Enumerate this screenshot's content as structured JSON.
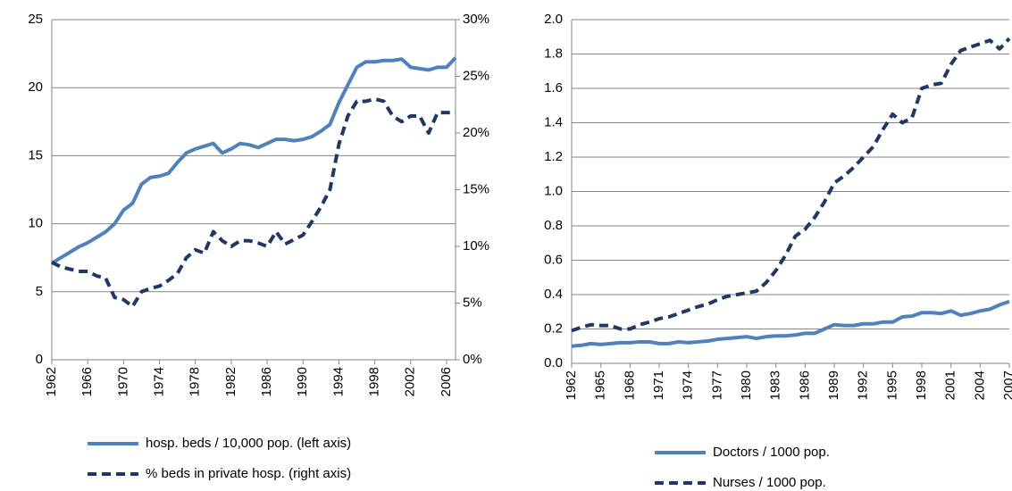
{
  "chart_data": [
    {
      "type": "line",
      "x": [
        1962,
        1963,
        1964,
        1965,
        1966,
        1967,
        1968,
        1969,
        1970,
        1971,
        1972,
        1973,
        1974,
        1975,
        1976,
        1977,
        1978,
        1979,
        1980,
        1981,
        1982,
        1983,
        1984,
        1985,
        1986,
        1987,
        1988,
        1989,
        1990,
        1991,
        1992,
        1993,
        1994,
        1995,
        1996,
        1997,
        1998,
        1999,
        2000,
        2001,
        2002,
        2003,
        2004,
        2005,
        2006,
        2007
      ],
      "xlim": [
        1962,
        2007
      ],
      "xticks": [
        1962,
        1966,
        1970,
        1974,
        1978,
        1982,
        1986,
        1990,
        1994,
        1998,
        2002,
        2006
      ],
      "ylim": [
        0,
        25
      ],
      "yticks": [
        0,
        5,
        10,
        15,
        20,
        25
      ],
      "y2lim": [
        0,
        30
      ],
      "y2ticks": [
        {
          "value": 0,
          "label": "0%"
        },
        {
          "value": 5,
          "label": "5%"
        },
        {
          "value": 10,
          "label": "10%"
        },
        {
          "value": 15,
          "label": "15%"
        },
        {
          "value": 20,
          "label": "20%"
        },
        {
          "value": 25,
          "label": "25%"
        },
        {
          "value": 30,
          "label": "30%"
        }
      ],
      "grid": true,
      "series": [
        {
          "name": "hosp. beds / 10,000 pop. (left axis)",
          "color": "#4f81bd",
          "line_style": "solid",
          "values": [
            7.1,
            7.5,
            7.9,
            8.3,
            8.6,
            9.0,
            9.4,
            10.0,
            11.0,
            11.5,
            12.9,
            13.4,
            13.5,
            13.7,
            14.5,
            15.2,
            15.5,
            15.7,
            15.9,
            15.2,
            15.5,
            15.9,
            15.8,
            15.6,
            15.9,
            16.2,
            16.2,
            16.1,
            16.2,
            16.4,
            16.8,
            17.3,
            18.9,
            20.2,
            21.5,
            21.9,
            21.9,
            22.0,
            22.0,
            22.1,
            21.5,
            21.4,
            21.3,
            21.5,
            21.5,
            22.2
          ]
        },
        {
          "name": "% beds in private hosp. (right axis)",
          "color": "#1f3864",
          "line_style": "dashed",
          "axis": "y2",
          "values": [
            8.6,
            8.2,
            8.0,
            7.8,
            7.8,
            7.4,
            7.2,
            5.5,
            5.3,
            4.7,
            6.0,
            6.3,
            6.5,
            7.0,
            7.6,
            9.0,
            9.7,
            9.4,
            11.3,
            10.5,
            10.0,
            10.5,
            10.5,
            10.3,
            10.0,
            11.3,
            10.2,
            10.6,
            11.0,
            12.2,
            13.5,
            15.0,
            19.0,
            21.5,
            22.8,
            22.8,
            23.0,
            22.8,
            21.5,
            21.0,
            21.5,
            21.5,
            20.0,
            21.8,
            21.8,
            21.8
          ]
        }
      ]
    },
    {
      "type": "line",
      "x": [
        1962,
        1963,
        1964,
        1965,
        1966,
        1967,
        1968,
        1969,
        1970,
        1971,
        1972,
        1973,
        1974,
        1975,
        1976,
        1977,
        1978,
        1979,
        1980,
        1981,
        1982,
        1983,
        1984,
        1985,
        1986,
        1987,
        1988,
        1989,
        1990,
        1991,
        1992,
        1993,
        1994,
        1995,
        1996,
        1997,
        1998,
        1999,
        2000,
        2001,
        2002,
        2003,
        2004,
        2005,
        2006,
        2007
      ],
      "xlim": [
        1962,
        2007
      ],
      "xticks": [
        1962,
        1965,
        1968,
        1971,
        1974,
        1977,
        1980,
        1983,
        1986,
        1989,
        1992,
        1995,
        1998,
        2001,
        2004,
        2007
      ],
      "ylim": [
        0,
        2
      ],
      "yticks": [
        {
          "value": 0,
          "label": "0.0"
        },
        {
          "value": 0.2,
          "label": "0.2"
        },
        {
          "value": 0.4,
          "label": "0.4"
        },
        {
          "value": 0.6,
          "label": "0.6"
        },
        {
          "value": 0.8,
          "label": "0.8"
        },
        {
          "value": 1,
          "label": "1.0"
        },
        {
          "value": 1.2,
          "label": "1.2"
        },
        {
          "value": 1.4,
          "label": "1.4"
        },
        {
          "value": 1.6,
          "label": "1.6"
        },
        {
          "value": 1.8,
          "label": "1.8"
        },
        {
          "value": 2,
          "label": "2.0"
        }
      ],
      "grid": true,
      "series": [
        {
          "name": "Doctors / 1000 pop.",
          "color": "#4f81bd",
          "line_style": "solid",
          "values": [
            0.1,
            0.105,
            0.115,
            0.11,
            0.115,
            0.12,
            0.12,
            0.125,
            0.125,
            0.115,
            0.115,
            0.125,
            0.12,
            0.125,
            0.13,
            0.14,
            0.145,
            0.15,
            0.155,
            0.145,
            0.155,
            0.16,
            0.16,
            0.165,
            0.175,
            0.175,
            0.2,
            0.225,
            0.22,
            0.22,
            0.23,
            0.23,
            0.24,
            0.24,
            0.27,
            0.275,
            0.295,
            0.295,
            0.29,
            0.305,
            0.28,
            0.29,
            0.305,
            0.315,
            0.34,
            0.36
          ]
        },
        {
          "name": "Nurses / 1000 pop.",
          "color": "#1f3864",
          "line_style": "dashed",
          "values": [
            0.19,
            0.21,
            0.225,
            0.22,
            0.22,
            0.2,
            0.2,
            0.225,
            0.24,
            0.26,
            0.27,
            0.29,
            0.31,
            0.33,
            0.345,
            0.37,
            0.39,
            0.4,
            0.41,
            0.42,
            0.47,
            0.54,
            0.63,
            0.74,
            0.78,
            0.85,
            0.94,
            1.05,
            1.09,
            1.14,
            1.2,
            1.26,
            1.36,
            1.45,
            1.4,
            1.43,
            1.6,
            1.62,
            1.63,
            1.74,
            1.82,
            1.84,
            1.86,
            1.88,
            1.83,
            1.89
          ]
        }
      ]
    }
  ]
}
